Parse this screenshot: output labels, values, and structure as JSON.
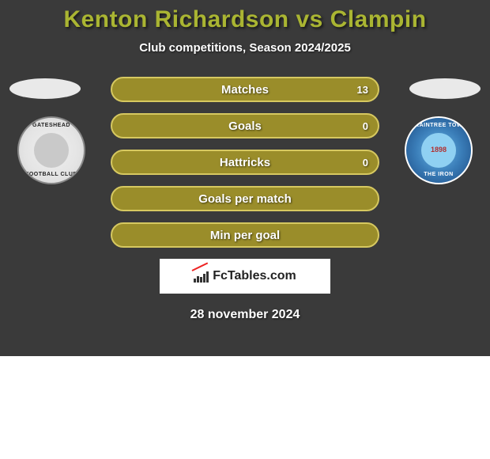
{
  "background_color": "#3a3a3a",
  "title": {
    "text": "Kenton Richardson vs Clampin",
    "color": "#aab532",
    "font_size": 30
  },
  "subtitle": {
    "text": "Club competitions, Season 2024/2025",
    "color": "#ffffff",
    "font_size": 15
  },
  "left": {
    "flag_color": "#e9e9e9",
    "crest_top": "GATESHEAD",
    "crest_bottom": "FOOTBALL CLUB"
  },
  "right": {
    "flag_color": "#e9e9e9",
    "crest_top": "BRAINTREE TOWN",
    "crest_bottom": "THE IRON",
    "year": "1898"
  },
  "bars": {
    "fill_color": "#9a8d2a",
    "border_color": "#d6c860",
    "items": [
      {
        "label": "Matches",
        "left": "",
        "right": "13"
      },
      {
        "label": "Goals",
        "left": "",
        "right": "0"
      },
      {
        "label": "Hattricks",
        "left": "",
        "right": "0"
      },
      {
        "label": "Goals per match",
        "left": "",
        "right": ""
      },
      {
        "label": "Min per goal",
        "left": "",
        "right": ""
      }
    ]
  },
  "logo_text": "FcTables.com",
  "date": "28 november 2024"
}
